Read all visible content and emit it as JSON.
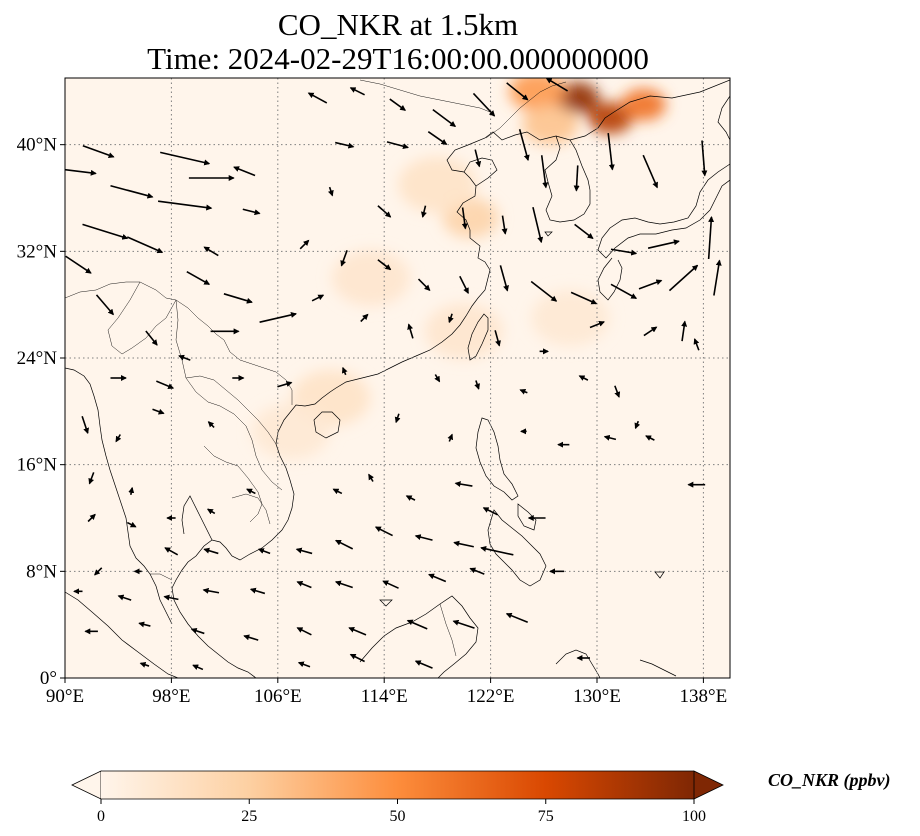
{
  "title": {
    "line1": "CO_NKR at 1.5km",
    "line2": "Time: 2024-02-29T16:00:00.000000000"
  },
  "map": {
    "lon_range": [
      90,
      140
    ],
    "lat_range": [
      0,
      45
    ],
    "x_ticks": [
      {
        "value": 90,
        "label": "90°E"
      },
      {
        "value": 98,
        "label": "98°E"
      },
      {
        "value": 106,
        "label": "106°E"
      },
      {
        "value": 114,
        "label": "114°E"
      },
      {
        "value": 122,
        "label": "122°E"
      },
      {
        "value": 130,
        "label": "130°E"
      },
      {
        "value": 138,
        "label": "138°E"
      }
    ],
    "y_ticks": [
      {
        "value": 0,
        "label": "0°"
      },
      {
        "value": 8,
        "label": "8°N"
      },
      {
        "value": 16,
        "label": "16°N"
      },
      {
        "value": 24,
        "label": "24°N"
      },
      {
        "value": 32,
        "label": "32°N"
      },
      {
        "value": 40,
        "label": "40°N"
      }
    ],
    "gridlines": true,
    "background_color": "#fff5eb",
    "colorscale": [
      "#fff5eb",
      "#fdd0a2",
      "#fd8d3c",
      "#d94801",
      "#7f2704"
    ],
    "co_hotspots": [
      {
        "lon": 128.5,
        "lat": 43.5,
        "value": 95
      },
      {
        "lon": 131.0,
        "lat": 42.0,
        "value": 85
      },
      {
        "lon": 133.5,
        "lat": 43.0,
        "value": 60
      },
      {
        "lon": 125.5,
        "lat": 44.0,
        "value": 45
      },
      {
        "lon": 126.5,
        "lat": 41.5,
        "value": 30
      },
      {
        "lon": 120.5,
        "lat": 34.5,
        "value": 22
      },
      {
        "lon": 118.0,
        "lat": 37.0,
        "value": 12
      },
      {
        "lon": 113.0,
        "lat": 30.0,
        "value": 10
      },
      {
        "lon": 120.0,
        "lat": 26.0,
        "value": 10
      },
      {
        "lon": 110.0,
        "lat": 21.0,
        "value": 12
      },
      {
        "lon": 107.0,
        "lat": 18.5,
        "value": 8
      },
      {
        "lon": 128.0,
        "lat": 27.0,
        "value": 8
      }
    ],
    "wind_vectors": [
      {
        "lon": 91,
        "lat": 38,
        "u": 2.5,
        "v": -0.3
      },
      {
        "lon": 92.5,
        "lat": 39.5,
        "u": 2.2,
        "v": -0.8
      },
      {
        "lon": 95,
        "lat": 36.5,
        "u": 3,
        "v": -0.8
      },
      {
        "lon": 99,
        "lat": 39,
        "u": 3.5,
        "v": -0.8
      },
      {
        "lon": 101,
        "lat": 37.5,
        "u": 3.2,
        "v": 0
      },
      {
        "lon": 99,
        "lat": 35.5,
        "u": 3.8,
        "v": -0.5
      },
      {
        "lon": 103.5,
        "lat": 38,
        "u": -1.5,
        "v": 0.6
      },
      {
        "lon": 104,
        "lat": 35,
        "u": 1.2,
        "v": -0.3
      },
      {
        "lon": 91,
        "lat": 31,
        "u": 1.8,
        "v": -1.2
      },
      {
        "lon": 93,
        "lat": 33.5,
        "u": 3.2,
        "v": -1
      },
      {
        "lon": 96,
        "lat": 32.5,
        "u": 2.5,
        "v": -1.1
      },
      {
        "lon": 101,
        "lat": 32,
        "u": -1,
        "v": 0.6
      },
      {
        "lon": 100,
        "lat": 30,
        "u": 1.6,
        "v": -0.9
      },
      {
        "lon": 103,
        "lat": 28.5,
        "u": 2,
        "v": -0.6
      },
      {
        "lon": 106,
        "lat": 27,
        "u": 2.6,
        "v": 0.6
      },
      {
        "lon": 102,
        "lat": 26,
        "u": 2,
        "v": 0
      },
      {
        "lon": 93,
        "lat": 28,
        "u": 1.2,
        "v": -1.4
      },
      {
        "lon": 96.5,
        "lat": 25.5,
        "u": 0.8,
        "v": -1
      },
      {
        "lon": 94,
        "lat": 22.5,
        "u": 1.1,
        "v": 0
      },
      {
        "lon": 97.5,
        "lat": 22,
        "u": 1.2,
        "v": -0.5
      },
      {
        "lon": 109,
        "lat": 43.5,
        "u": -1.3,
        "v": 0.7
      },
      {
        "lon": 112,
        "lat": 44,
        "u": -1,
        "v": 0.5
      },
      {
        "lon": 115,
        "lat": 43,
        "u": 1.1,
        "v": -0.8
      },
      {
        "lon": 118.5,
        "lat": 42,
        "u": 1.6,
        "v": -1.2
      },
      {
        "lon": 121.5,
        "lat": 43,
        "u": 1.5,
        "v": -1.6
      },
      {
        "lon": 124,
        "lat": 44,
        "u": 1.5,
        "v": -1.2
      },
      {
        "lon": 127,
        "lat": 44.5,
        "u": -1.5,
        "v": 0.9
      },
      {
        "lon": 111,
        "lat": 40,
        "u": 1.3,
        "v": -0.3
      },
      {
        "lon": 115,
        "lat": 40,
        "u": 1.5,
        "v": -0.4
      },
      {
        "lon": 118,
        "lat": 40.5,
        "u": 1.3,
        "v": -0.9
      },
      {
        "lon": 121,
        "lat": 39,
        "u": 0.3,
        "v": -1.2
      },
      {
        "lon": 124.5,
        "lat": 40,
        "u": 0.6,
        "v": -2.2
      },
      {
        "lon": 126,
        "lat": 38,
        "u": 0.3,
        "v": -2.3
      },
      {
        "lon": 128.5,
        "lat": 37.5,
        "u": -0.1,
        "v": -1.8
      },
      {
        "lon": 131,
        "lat": 39.5,
        "u": 0.3,
        "v": -2.6
      },
      {
        "lon": 134,
        "lat": 38,
        "u": 1,
        "v": -2.3
      },
      {
        "lon": 138,
        "lat": 39,
        "u": 0.2,
        "v": -2.5
      },
      {
        "lon": 110,
        "lat": 36.5,
        "u": 0.2,
        "v": -0.6
      },
      {
        "lon": 114,
        "lat": 35,
        "u": 0.9,
        "v": -0.8
      },
      {
        "lon": 117,
        "lat": 35,
        "u": -0.2,
        "v": -0.8
      },
      {
        "lon": 120,
        "lat": 34.5,
        "u": 0.2,
        "v": -1.5
      },
      {
        "lon": 123,
        "lat": 34,
        "u": 0.2,
        "v": -1.3
      },
      {
        "lon": 125.5,
        "lat": 34,
        "u": 0.6,
        "v": -2.5
      },
      {
        "lon": 129,
        "lat": 33.5,
        "u": 1.3,
        "v": -1
      },
      {
        "lon": 132,
        "lat": 32,
        "u": 1.8,
        "v": -0.3
      },
      {
        "lon": 135,
        "lat": 32.5,
        "u": 2.2,
        "v": 0.5
      },
      {
        "lon": 138.5,
        "lat": 33,
        "u": 0.2,
        "v": 3
      },
      {
        "lon": 136.5,
        "lat": 30,
        "u": 2,
        "v": 1.8
      },
      {
        "lon": 139,
        "lat": 30,
        "u": 0.4,
        "v": 2.5
      },
      {
        "lon": 108,
        "lat": 32.5,
        "u": 0.6,
        "v": 0.6
      },
      {
        "lon": 111,
        "lat": 31.5,
        "u": -0.4,
        "v": -1.1
      },
      {
        "lon": 114,
        "lat": 31,
        "u": 0.9,
        "v": -0.7
      },
      {
        "lon": 117,
        "lat": 29.5,
        "u": 0.8,
        "v": -0.8
      },
      {
        "lon": 120,
        "lat": 29.5,
        "u": 0.6,
        "v": -1.2
      },
      {
        "lon": 123,
        "lat": 30,
        "u": 0.5,
        "v": -1.8
      },
      {
        "lon": 126,
        "lat": 29,
        "u": 1.8,
        "v": -1.4
      },
      {
        "lon": 129,
        "lat": 28.5,
        "u": 1.8,
        "v": -0.8
      },
      {
        "lon": 132,
        "lat": 29,
        "u": 1.8,
        "v": -1
      },
      {
        "lon": 134,
        "lat": 29.5,
        "u": 1.6,
        "v": 0.6
      },
      {
        "lon": 109,
        "lat": 28.5,
        "u": 0.8,
        "v": 0.4
      },
      {
        "lon": 112.5,
        "lat": 27,
        "u": 0.5,
        "v": 0.5
      },
      {
        "lon": 116,
        "lat": 26,
        "u": -0.3,
        "v": 1
      },
      {
        "lon": 119,
        "lat": 27,
        "u": -0.2,
        "v": -0.6
      },
      {
        "lon": 122.5,
        "lat": 25.5,
        "u": 0.3,
        "v": -1.1
      },
      {
        "lon": 126,
        "lat": 24.5,
        "u": 0.6,
        "v": 0
      },
      {
        "lon": 130,
        "lat": 26.5,
        "u": 1,
        "v": 0.4
      },
      {
        "lon": 134,
        "lat": 26,
        "u": 0.9,
        "v": 0.6
      },
      {
        "lon": 136.5,
        "lat": 26,
        "u": 0.2,
        "v": 1.4
      },
      {
        "lon": 137.5,
        "lat": 25,
        "u": -0.3,
        "v": 0.8
      },
      {
        "lon": 99,
        "lat": 24,
        "u": -0.8,
        "v": 0.3
      },
      {
        "lon": 103,
        "lat": 22.5,
        "u": 0.8,
        "v": 0
      },
      {
        "lon": 106.5,
        "lat": 22,
        "u": 1,
        "v": 0.3
      },
      {
        "lon": 111,
        "lat": 23,
        "u": -0.2,
        "v": 0.5
      },
      {
        "lon": 118,
        "lat": 22.5,
        "u": 0.3,
        "v": -0.5
      },
      {
        "lon": 121,
        "lat": 22,
        "u": 0.2,
        "v": -0.6
      },
      {
        "lon": 124.5,
        "lat": 21.5,
        "u": -0.5,
        "v": 0.2
      },
      {
        "lon": 129,
        "lat": 22.5,
        "u": -0.6,
        "v": 0.3
      },
      {
        "lon": 131.5,
        "lat": 21.5,
        "u": 0.3,
        "v": -0.8
      },
      {
        "lon": 133,
        "lat": 19,
        "u": -0.2,
        "v": -0.5
      },
      {
        "lon": 91.5,
        "lat": 19,
        "u": 0.4,
        "v": -1.2
      },
      {
        "lon": 94,
        "lat": 18,
        "u": -0.3,
        "v": -0.5
      },
      {
        "lon": 97,
        "lat": 20,
        "u": 0.8,
        "v": -0.3
      },
      {
        "lon": 101,
        "lat": 19,
        "u": -0.4,
        "v": 0.4
      },
      {
        "lon": 115,
        "lat": 19.5,
        "u": -0.2,
        "v": -0.6
      },
      {
        "lon": 119,
        "lat": 18,
        "u": 0.2,
        "v": 0.5
      },
      {
        "lon": 124.5,
        "lat": 18.5,
        "u": -0.4,
        "v": 0
      },
      {
        "lon": 127.5,
        "lat": 17.5,
        "u": -0.8,
        "v": 0
      },
      {
        "lon": 131,
        "lat": 18,
        "u": -0.8,
        "v": 0.2
      },
      {
        "lon": 134,
        "lat": 18,
        "u": -0.6,
        "v": 0.3
      },
      {
        "lon": 92,
        "lat": 15,
        "u": -0.3,
        "v": -0.8
      },
      {
        "lon": 95,
        "lat": 14,
        "u": 0.1,
        "v": 0.5
      },
      {
        "lon": 92,
        "lat": 12,
        "u": 0.5,
        "v": 0.5
      },
      {
        "lon": 95,
        "lat": 11.5,
        "u": 0.6,
        "v": -0.3
      },
      {
        "lon": 98,
        "lat": 12,
        "u": -0.6,
        "v": 0
      },
      {
        "lon": 101,
        "lat": 12.5,
        "u": -0.5,
        "v": 0.3
      },
      {
        "lon": 104,
        "lat": 14,
        "u": -0.6,
        "v": 0.3
      },
      {
        "lon": 110.5,
        "lat": 14,
        "u": -0.6,
        "v": 0.3
      },
      {
        "lon": 113,
        "lat": 15,
        "u": -0.3,
        "v": 0.5
      },
      {
        "lon": 116,
        "lat": 13.5,
        "u": -0.6,
        "v": 0.3
      },
      {
        "lon": 120,
        "lat": 14.5,
        "u": -1.2,
        "v": 0.2
      },
      {
        "lon": 122,
        "lat": 12.5,
        "u": -1,
        "v": 0.5
      },
      {
        "lon": 125.5,
        "lat": 12,
        "u": -1.2,
        "v": 0
      },
      {
        "lon": 137.5,
        "lat": 14.5,
        "u": -1.2,
        "v": 0
      },
      {
        "lon": 92.5,
        "lat": 8,
        "u": -0.5,
        "v": -0.5
      },
      {
        "lon": 95.5,
        "lat": 8,
        "u": -0.5,
        "v": 0
      },
      {
        "lon": 98,
        "lat": 9.5,
        "u": -0.9,
        "v": 0.5
      },
      {
        "lon": 101,
        "lat": 9.5,
        "u": -1,
        "v": 0.3
      },
      {
        "lon": 105,
        "lat": 9.5,
        "u": -0.8,
        "v": 0.3
      },
      {
        "lon": 108,
        "lat": 9.5,
        "u": -1.1,
        "v": 0.3
      },
      {
        "lon": 111,
        "lat": 10,
        "u": -1.2,
        "v": 0.6
      },
      {
        "lon": 114,
        "lat": 11,
        "u": -1.2,
        "v": 0.6
      },
      {
        "lon": 117,
        "lat": 10.5,
        "u": -1.2,
        "v": 0.3
      },
      {
        "lon": 120,
        "lat": 10,
        "u": -1.4,
        "v": 0.3
      },
      {
        "lon": 122.5,
        "lat": 9.5,
        "u": -2.3,
        "v": 0.5
      },
      {
        "lon": 127,
        "lat": 8,
        "u": -1,
        "v": 0
      },
      {
        "lon": 91,
        "lat": 6.5,
        "u": -0.6,
        "v": 0
      },
      {
        "lon": 94.5,
        "lat": 6,
        "u": -0.9,
        "v": 0.3
      },
      {
        "lon": 98,
        "lat": 6,
        "u": -1,
        "v": 0.2
      },
      {
        "lon": 101,
        "lat": 6.5,
        "u": -1.1,
        "v": 0.2
      },
      {
        "lon": 104.5,
        "lat": 6.5,
        "u": -1,
        "v": 0.3
      },
      {
        "lon": 108,
        "lat": 7,
        "u": -1,
        "v": 0.4
      },
      {
        "lon": 111,
        "lat": 7,
        "u": -1.2,
        "v": 0.4
      },
      {
        "lon": 114.5,
        "lat": 7,
        "u": -1.1,
        "v": 0.5
      },
      {
        "lon": 118,
        "lat": 7.5,
        "u": -1.2,
        "v": 0.5
      },
      {
        "lon": 121,
        "lat": 8,
        "u": -1,
        "v": 0.4
      },
      {
        "lon": 92,
        "lat": 3.5,
        "u": -0.9,
        "v": 0
      },
      {
        "lon": 96,
        "lat": 4,
        "u": -0.8,
        "v": 0.2
      },
      {
        "lon": 100,
        "lat": 3.5,
        "u": -0.9,
        "v": 0.3
      },
      {
        "lon": 104,
        "lat": 3,
        "u": -1,
        "v": 0.3
      },
      {
        "lon": 108,
        "lat": 3.5,
        "u": -1,
        "v": 0.5
      },
      {
        "lon": 112,
        "lat": 3.5,
        "u": -1.2,
        "v": 0.5
      },
      {
        "lon": 116.5,
        "lat": 4,
        "u": -1.4,
        "v": 0.6
      },
      {
        "lon": 120,
        "lat": 4,
        "u": -1.5,
        "v": 0.5
      },
      {
        "lon": 124,
        "lat": 4.5,
        "u": -1.5,
        "v": 0.6
      },
      {
        "lon": 108,
        "lat": 1,
        "u": -0.8,
        "v": 0.3
      },
      {
        "lon": 112,
        "lat": 1.5,
        "u": -1,
        "v": 0.5
      },
      {
        "lon": 117,
        "lat": 1,
        "u": -1.2,
        "v": 0.5
      },
      {
        "lon": 129,
        "lat": 1.5,
        "u": -0.9,
        "v": 0
      },
      {
        "lon": 96,
        "lat": 1,
        "u": -0.6,
        "v": 0.2
      },
      {
        "lon": 100,
        "lat": 0.8,
        "u": -0.7,
        "v": 0.3
      }
    ]
  },
  "colorbar": {
    "label": "CO_NKR (ppbv)",
    "min": 0,
    "max": 100,
    "ticks": [
      {
        "value": 0,
        "label": "0"
      },
      {
        "value": 25,
        "label": "25"
      },
      {
        "value": 50,
        "label": "50"
      },
      {
        "value": 75,
        "label": "75"
      },
      {
        "value": 100,
        "label": "100"
      }
    ],
    "extend": "both"
  }
}
